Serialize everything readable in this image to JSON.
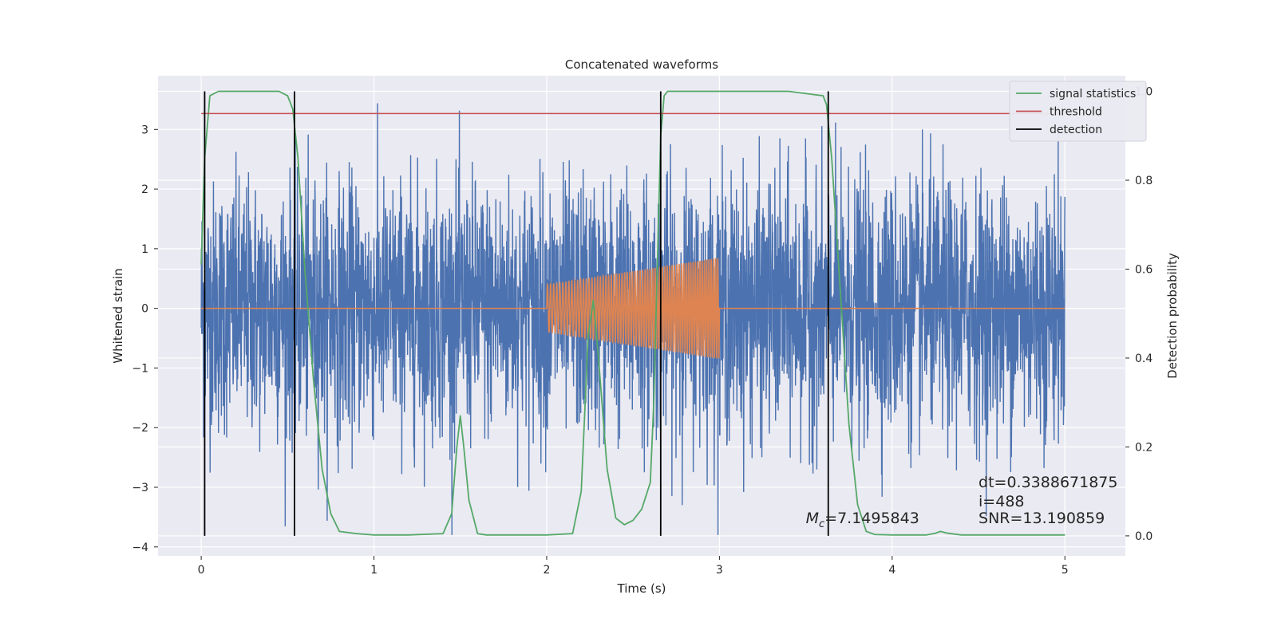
{
  "chart_data": {
    "type": "line",
    "title": "Concatenated waveforms",
    "xlabel": "Time (s)",
    "ylabel": "Whitened strain",
    "y2label": "Detection probability",
    "xlim": [
      -0.25,
      5.35
    ],
    "ylim": [
      -4.15,
      3.9
    ],
    "y2lim": [
      -0.045,
      1.035
    ],
    "x_ticks": [
      0,
      1,
      2,
      3,
      4,
      5
    ],
    "x_tick_labels": [
      "0",
      "1",
      "2",
      "3",
      "4",
      "5"
    ],
    "y_ticks": [
      -4,
      -3,
      -2,
      -1,
      0,
      1,
      2,
      3
    ],
    "y_tick_labels": [
      "−4",
      "−3",
      "−2",
      "−1",
      "0",
      "1",
      "2",
      "3"
    ],
    "y2_ticks": [
      0.0,
      0.2,
      0.4,
      0.6,
      0.8,
      1.0
    ],
    "y2_tick_labels": [
      "0.0",
      "0.2",
      "0.4",
      "0.6",
      "0.8",
      "1.0"
    ],
    "grid": true,
    "legend_position": "top-right",
    "legend": [
      {
        "label": "signal statistics",
        "color": "#55a868"
      },
      {
        "label": "threshold",
        "color": "#c44e52"
      },
      {
        "label": "detection",
        "color": "#000000"
      }
    ],
    "series": [
      {
        "kind": "whitened strain (noisy)",
        "color": "#4c72b0",
        "x_range": [
          0,
          5
        ],
        "approx_envelope": [
          -3.8,
          3.5
        ]
      },
      {
        "kind": "injected chirp",
        "color": "#dd8452",
        "x_range": [
          2,
          3
        ],
        "amplitude_start": 0.4,
        "amplitude_end": 0.85
      },
      {
        "name": "signal statistics",
        "color": "#55a868",
        "axis": "right",
        "x": [
          0,
          0.02,
          0.05,
          0.1,
          0.2,
          0.3,
          0.4,
          0.45,
          0.5,
          0.53,
          0.56,
          0.6,
          0.65,
          0.7,
          0.75,
          0.8,
          0.9,
          1.0,
          1.2,
          1.4,
          1.45,
          1.48,
          1.5,
          1.52,
          1.55,
          1.6,
          1.65,
          1.8,
          2.0,
          2.15,
          2.2,
          2.24,
          2.27,
          2.3,
          2.35,
          2.4,
          2.45,
          2.5,
          2.55,
          2.6,
          2.62,
          2.64,
          2.66,
          2.68,
          2.7,
          2.8,
          3.0,
          3.4,
          3.6,
          3.62,
          3.65,
          3.7,
          3.75,
          3.8,
          3.85,
          3.9,
          4.0,
          4.2,
          4.25,
          4.28,
          4.32,
          4.4,
          4.6,
          5.0
        ],
        "y": [
          0.61,
          0.85,
          0.99,
          1.0,
          1.0,
          1.0,
          1.0,
          1.0,
          0.99,
          0.96,
          0.85,
          0.6,
          0.35,
          0.15,
          0.05,
          0.01,
          0.005,
          0.002,
          0.002,
          0.005,
          0.05,
          0.2,
          0.27,
          0.2,
          0.08,
          0.005,
          0.002,
          0.002,
          0.002,
          0.005,
          0.1,
          0.45,
          0.53,
          0.4,
          0.15,
          0.04,
          0.025,
          0.035,
          0.06,
          0.12,
          0.3,
          0.6,
          0.9,
          0.99,
          1.0,
          1.0,
          1.0,
          1.0,
          0.99,
          0.97,
          0.85,
          0.55,
          0.25,
          0.07,
          0.01,
          0.003,
          0.002,
          0.002,
          0.006,
          0.01,
          0.006,
          0.002,
          0.002,
          0.002
        ]
      },
      {
        "name": "threshold",
        "color": "#c44e52",
        "axis": "right",
        "x": [
          0,
          5
        ],
        "y": [
          0.95,
          0.95
        ]
      }
    ],
    "detections": [
      0.02,
      0.54,
      2.66,
      3.63
    ],
    "annotations": [
      {
        "id": "dt",
        "text": "dt=0.3388671875",
        "x": 4.5,
        "y": -3.0
      },
      {
        "id": "i",
        "text": " i=488",
        "x": 4.5,
        "y": -3.32
      },
      {
        "id": "snr",
        "text": "SNR=13.190859",
        "x": 4.5,
        "y": -3.6
      },
      {
        "id": "mc",
        "text_main": "M",
        "text_sub": "c",
        "text_rest": "=7.1495843",
        "x": 3.5,
        "y": -3.6
      }
    ]
  }
}
